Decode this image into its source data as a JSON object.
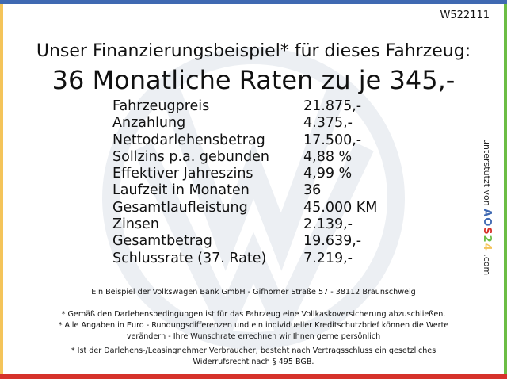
{
  "code": "W522111",
  "title_line1": "Unser Finanzierungsbeispiel* für dieses Fahrzeug:",
  "title_line2": "36 Monatliche Raten zu je 345,-",
  "rows": [
    {
      "label": "Fahrzeugpreis",
      "value": "21.875,-"
    },
    {
      "label": "Anzahlung",
      "value": "4.375,-"
    },
    {
      "label": "Nettodarlehensbetrag",
      "value": "17.500,-"
    },
    {
      "label": "Sollzins p.a. gebunden",
      "value": "4,88 %"
    },
    {
      "label": "Effektiver Jahreszins",
      "value": "4,99 %"
    },
    {
      "label": "Laufzeit in Monaten",
      "value": "36"
    },
    {
      "label": "Gesamtlaufleistung",
      "value": "45.000 KM"
    },
    {
      "label": "Zinsen",
      "value": "2.139,-"
    },
    {
      "label": "Gesamtbetrag",
      "value": "19.639,-"
    },
    {
      "label": "Schlussrate (37. Rate)",
      "value": "7.219,-"
    }
  ],
  "sidebar": {
    "prefix": "unterstützt von",
    "brand": "AOS24",
    "suffix": ".com"
  },
  "footer": {
    "bank": "Ein Beispiel der Volkswagen Bank GmbH - Gifhorner Straße 57 - 38112 Braunschweig",
    "note1": "* Gemäß den Darlehensbedingungen ist für das Fahrzeug eine Vollkaskoversicherung abzuschließen.",
    "note2a": "* Alle Angaben in Euro - Rundungsdifferenzen und ein individueller Kreditschutzbrief können die Werte",
    "note2b": "verändern - Ihre Wunschrate errechnen wir Ihnen gerne persönlich",
    "note3a": "* Ist der Darlehens-/Leasingnehmer Verbraucher, besteht nach Vertragsschluss ein gesetzliches",
    "note3b": "Widerrufsrecht nach § 495 BGB."
  },
  "colors": {
    "top": "#3f69b2",
    "left": "#f4c45a",
    "right": "#6cbd45",
    "bottom": "#d6322b"
  }
}
